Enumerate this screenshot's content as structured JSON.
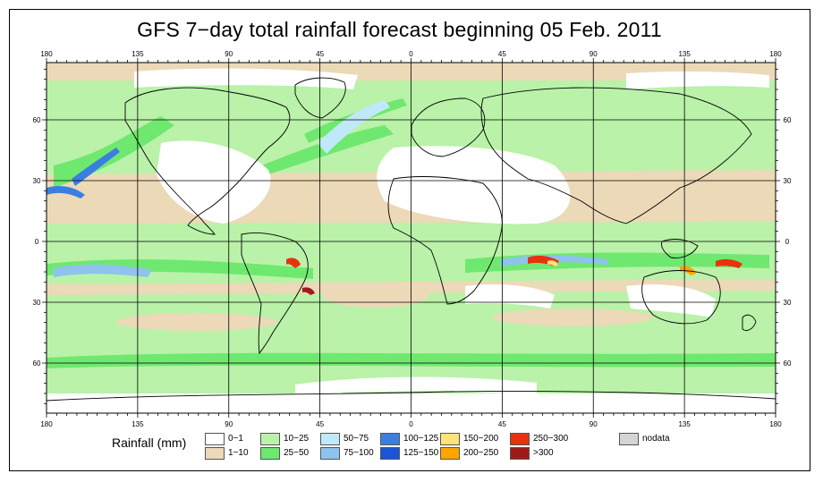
{
  "title": "GFS 7−day total rainfall forecast beginning 05 Feb. 2011",
  "axes": {
    "top_lon_labels": [
      "180",
      "135",
      "90",
      "45",
      "0",
      "45",
      "90",
      "135",
      "180"
    ],
    "bottom_lon_labels": [
      "180",
      "135",
      "90",
      "45",
      "0",
      "45",
      "90",
      "135",
      "180"
    ],
    "left_lat_labels": [
      "60",
      "30",
      "0",
      "30",
      "60"
    ],
    "right_lat_labels": [
      "60",
      "30",
      "0",
      "30",
      "60"
    ]
  },
  "legend": {
    "title": "Rainfall (mm)",
    "items": [
      {
        "label": "0−1",
        "color": "#ffffff"
      },
      {
        "label": "1−10",
        "color": "#ecd9b8"
      },
      {
        "label": "10−25",
        "color": "#b9f2a8"
      },
      {
        "label": "25−50",
        "color": "#6fe86f"
      },
      {
        "label": "50−75",
        "color": "#bfe9f8"
      },
      {
        "label": "75−100",
        "color": "#8ec3ee"
      },
      {
        "label": "100−125",
        "color": "#3a7fe0"
      },
      {
        "label": "125−150",
        "color": "#1a55d8"
      },
      {
        "label": "150−200",
        "color": "#ffe27a"
      },
      {
        "label": "200−250",
        "color": "#ffa500"
      },
      {
        "label": "250−300",
        "color": "#e8320e"
      },
      {
        "label": ">300",
        "color": "#9e1a1a"
      },
      {
        "label": "nodata",
        "color": "#d4d4d4"
      }
    ]
  },
  "colors": {
    "land_outline": "#000000",
    "grid": "#000000"
  }
}
